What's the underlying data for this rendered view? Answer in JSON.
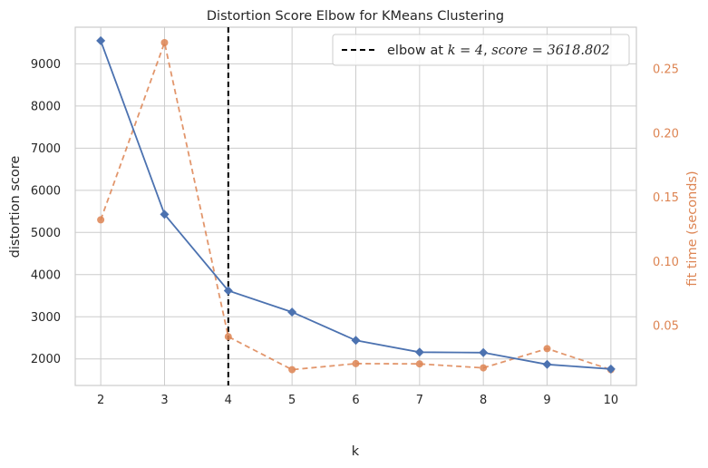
{
  "chart_data": {
    "type": "line",
    "title": "Distortion Score Elbow for KMeans Clustering",
    "xlabel": "k",
    "ylabel": "distortion score",
    "ylabel_right": "fit time (seconds)",
    "x": [
      2,
      3,
      4,
      5,
      6,
      7,
      8,
      9,
      10
    ],
    "xlim": [
      1.6,
      10.4
    ],
    "ylim": [
      1370,
      9870
    ],
    "ylim_right": [
      0.0035,
      0.2825
    ],
    "yticks": [
      2000,
      3000,
      4000,
      5000,
      6000,
      7000,
      8000,
      9000
    ],
    "yticks_right": [
      0.05,
      0.1,
      0.15,
      0.2,
      0.25
    ],
    "yticks_right_labels": [
      "0.05",
      "0.10",
      "0.15",
      "0.20",
      "0.25"
    ],
    "grid": true,
    "series": [
      {
        "axis": "left",
        "style": "solid",
        "marker": "diamond",
        "color": "#4c72b0",
        "values": [
          9550,
          5430,
          3619,
          3110,
          2440,
          2160,
          2150,
          1870,
          1760
        ]
      },
      {
        "axis": "right",
        "style": "dashed",
        "marker": "circle",
        "color": "#dd8452",
        "values": [
          0.1325,
          0.2705,
          0.0415,
          0.0158,
          0.0205,
          0.0203,
          0.0172,
          0.0322,
          0.0158
        ]
      }
    ],
    "elbow": {
      "x": 4,
      "color": "#000000",
      "legend_prefix": "elbow at ",
      "legend_k": "k = 4",
      "legend_sep": ", ",
      "legend_score": "score = 3618.802"
    },
    "legend_position": "top-right"
  }
}
